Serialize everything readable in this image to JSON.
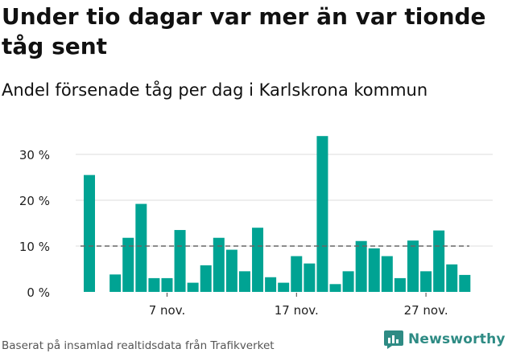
{
  "title": "Under tio dagar var mer än var tionde tåg sent",
  "subtitle": "Andel försenade tåg per dag i Karlskrona kommun",
  "footer": {
    "source": "Baserat på insamlad realtidsdata från Trafikverket"
  },
  "brand": {
    "name": "Newsworthy",
    "color": "#2e8b84"
  },
  "colors": {
    "bar": "#00a393",
    "reference_line": "#666666",
    "grid": "#dddddd"
  },
  "chart_data": {
    "type": "bar",
    "x": [
      1,
      2,
      3,
      4,
      5,
      6,
      7,
      8,
      9,
      10,
      11,
      12,
      13,
      14,
      15,
      16,
      17,
      18,
      19,
      20,
      21,
      22,
      23,
      24,
      25,
      26,
      27,
      28,
      29,
      30
    ],
    "values": [
      25.5,
      null,
      3.8,
      11.8,
      19.2,
      3.0,
      3.0,
      13.5,
      2.0,
      5.8,
      11.8,
      9.2,
      4.5,
      14.0,
      3.2,
      2.0,
      7.8,
      6.2,
      34.0,
      1.7,
      4.5,
      11.1,
      9.5,
      7.8,
      3.0,
      11.2,
      4.5,
      13.4,
      6.0,
      3.7
    ],
    "x_ticks": [
      {
        "x": 7,
        "label": "7 nov."
      },
      {
        "x": 17,
        "label": "17 nov."
      },
      {
        "x": 27,
        "label": "27 nov."
      }
    ],
    "y_ticks": [
      {
        "value": 0,
        "label": "0 %"
      },
      {
        "value": 10,
        "label": "10 %"
      },
      {
        "value": 20,
        "label": "20 %"
      },
      {
        "value": 30,
        "label": "30 %"
      }
    ],
    "ylim": [
      0,
      35
    ],
    "reference_line": 10,
    "grid": true
  }
}
